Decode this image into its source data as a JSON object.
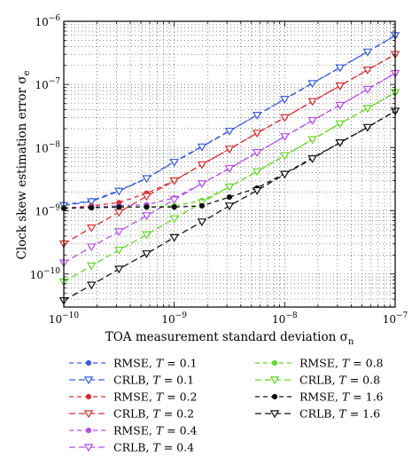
{
  "chart_data": {
    "type": "line",
    "xscale": "log",
    "yscale": "log",
    "xlim": [
      1e-10,
      1e-07
    ],
    "ylim": [
      3e-11,
      1e-06
    ],
    "grid": true,
    "legend_placement": "bottom",
    "xlabel": "TOA measurement standard deviation σ",
    "xlabel_sub": "n",
    "ylabel": "Clock skew estimation error σ",
    "ylabel_sub": "e",
    "x_ticks": [
      {
        "value": 1e-10,
        "base": "10",
        "exp": "−10"
      },
      {
        "value": 1e-09,
        "base": "10",
        "exp": "−9"
      },
      {
        "value": 1e-08,
        "base": "10",
        "exp": "−8"
      },
      {
        "value": 1e-07,
        "base": "10",
        "exp": "−7"
      }
    ],
    "y_ticks": [
      {
        "value": 1e-10,
        "base": "10",
        "exp": "−10"
      },
      {
        "value": 1e-09,
        "base": "10",
        "exp": "−9"
      },
      {
        "value": 1e-08,
        "base": "10",
        "exp": "−8"
      },
      {
        "value": 1e-07,
        "base": "10",
        "exp": "−7"
      },
      {
        "value": 1e-06,
        "base": "10",
        "exp": "−6"
      }
    ],
    "x": [
      1e-10,
      1.78e-10,
      3.16e-10,
      5.62e-10,
      1e-09,
      1.78e-09,
      3.16e-09,
      5.62e-09,
      1e-08,
      1.78e-08,
      3.16e-08,
      5.62e-08,
      1e-07
    ],
    "series": [
      {
        "name": "RMSE",
        "T": "0.1",
        "color": "#3a5fd9",
        "marker": "dot",
        "dash": "5,4",
        "values": [
          1.25e-09,
          1.45e-09,
          2.1e-09,
          3.3e-09,
          6e-09,
          1.05e-08,
          1.85e-08,
          3.3e-08,
          5.9e-08,
          1.05e-07,
          1.85e-07,
          3.3e-07,
          6e-07
        ]
      },
      {
        "name": "CRLB",
        "T": "0.1",
        "color": "#3a5fd9",
        "marker": "tri",
        "dash": "7,4",
        "values": [
          1.22e-09,
          1.4e-09,
          2.05e-09,
          3.25e-09,
          5.9e-09,
          1.03e-08,
          1.83e-08,
          3.27e-08,
          5.85e-08,
          1.04e-07,
          1.84e-07,
          3.28e-07,
          5.95e-07
        ]
      },
      {
        "name": "RMSE",
        "T": "0.2",
        "color": "#d43030",
        "marker": "dot",
        "dash": "5,4",
        "values": [
          1.1e-09,
          1.2e-09,
          1.35e-09,
          1.9e-09,
          3e-09,
          5.4e-09,
          9.5e-09,
          1.7e-08,
          3e-08,
          5.4e-08,
          9.5e-08,
          1.7e-07,
          3e-07
        ]
      },
      {
        "name": "CRLB",
        "T": "0.2",
        "color": "#d43030",
        "marker": "tri",
        "dash": "7,4",
        "values": [
          3e-10,
          5.4e-10,
          9.5e-10,
          1.7e-09,
          3e-09,
          5.4e-09,
          9.5e-09,
          1.7e-08,
          3e-08,
          5.4e-08,
          9.5e-08,
          1.7e-07,
          3e-07
        ]
      },
      {
        "name": "RMSE",
        "T": "0.4",
        "color": "#b44fe6",
        "marker": "dot",
        "dash": "5,4",
        "values": [
          1.1e-09,
          1.15e-09,
          1.2e-09,
          1.25e-09,
          1.6e-09,
          2.7e-09,
          4.7e-09,
          8.4e-09,
          1.5e-08,
          2.7e-08,
          4.7e-08,
          8.4e-08,
          1.5e-07
        ]
      },
      {
        "name": "CRLB",
        "T": "0.4",
        "color": "#b44fe6",
        "marker": "tri",
        "dash": "7,4",
        "values": [
          1.5e-10,
          2.7e-10,
          4.7e-10,
          8.4e-10,
          1.5e-09,
          2.7e-09,
          4.7e-09,
          8.4e-09,
          1.5e-08,
          2.7e-08,
          4.7e-08,
          8.4e-08,
          1.5e-07
        ]
      },
      {
        "name": "RMSE",
        "T": "0.8",
        "color": "#66d62a",
        "marker": "dot",
        "dash": "5,4",
        "values": [
          1.1e-09,
          1.12e-09,
          1.15e-09,
          1.15e-09,
          1.2e-09,
          1.45e-09,
          2.4e-09,
          4.2e-09,
          7.5e-09,
          1.35e-08,
          2.4e-08,
          4.2e-08,
          7.5e-08
        ]
      },
      {
        "name": "CRLB",
        "T": "0.8",
        "color": "#66d62a",
        "marker": "tri",
        "dash": "7,4",
        "values": [
          7.5e-11,
          1.35e-10,
          2.4e-10,
          4.2e-10,
          7.5e-10,
          1.35e-09,
          2.4e-09,
          4.2e-09,
          7.5e-09,
          1.35e-08,
          2.4e-08,
          4.2e-08,
          7.5e-08
        ]
      },
      {
        "name": "RMSE",
        "T": "1.6",
        "color": "#111111",
        "marker": "dot",
        "dash": "5,4",
        "values": [
          1.1e-09,
          1.12e-09,
          1.15e-09,
          1.15e-09,
          1.15e-09,
          1.2e-09,
          1.65e-09,
          2.3e-09,
          3.9e-09,
          6.9e-09,
          1.2e-08,
          2.1e-08,
          3.8e-08
        ]
      },
      {
        "name": "CRLB",
        "T": "1.6",
        "color": "#111111",
        "marker": "tri",
        "dash": "7,4",
        "values": [
          3.8e-11,
          6.7e-11,
          1.2e-10,
          2.1e-10,
          3.8e-10,
          6.7e-10,
          1.2e-09,
          2.1e-09,
          3.8e-09,
          6.7e-09,
          1.2e-08,
          2.1e-08,
          3.8e-08
        ]
      }
    ]
  }
}
